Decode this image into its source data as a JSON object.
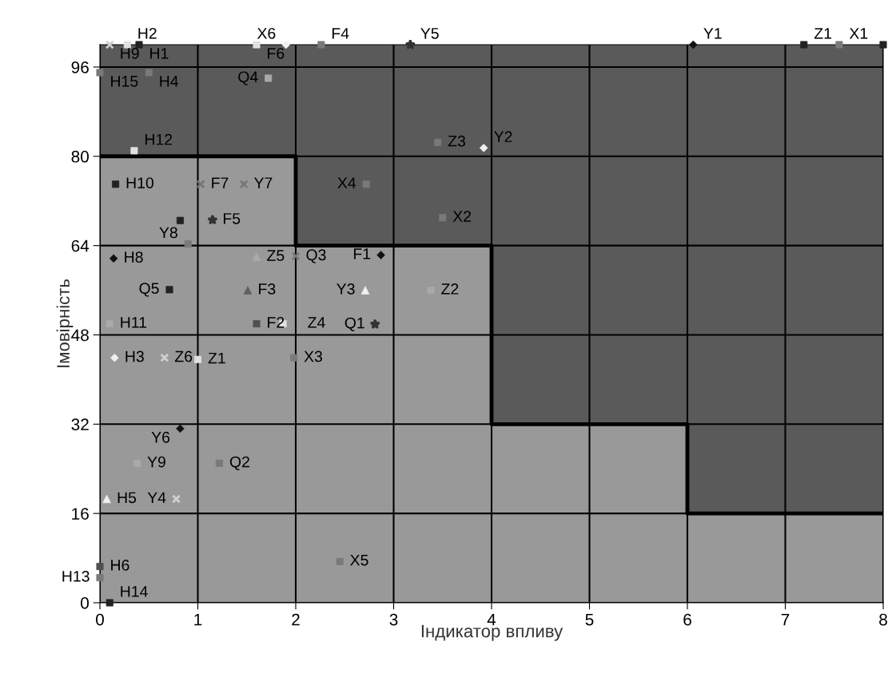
{
  "chart_data": {
    "type": "scatter",
    "xlabel": "Індикатор впливу",
    "ylabel": "Імовірність",
    "xlim": [
      0,
      8
    ],
    "ylim": [
      0,
      100
    ],
    "xticks": [
      0,
      1,
      2,
      3,
      4,
      5,
      6,
      7,
      8
    ],
    "yticks": [
      0,
      16,
      32,
      48,
      64,
      80,
      96
    ],
    "grid": true,
    "legend": false,
    "series": [
      {
        "type": "area",
        "color": "#999999",
        "x": [
          0,
          2,
          2,
          4,
          4,
          6,
          6,
          8
        ],
        "values": [
          80,
          80,
          64,
          64,
          32,
          32,
          16,
          16
        ]
      },
      {
        "marker": "diamond",
        "color": "#111111",
        "x": [
          0.14,
          2.87,
          0.82,
          6.06
        ],
        "values": [
          61.7,
          62.3,
          31.2,
          100
        ]
      },
      {
        "marker": "diamond",
        "color": "#f0f0f0",
        "x": [
          0.15,
          3.92,
          1.9
        ],
        "values": [
          43.9,
          81.5,
          100
        ]
      },
      {
        "marker": "triangle",
        "color": "#606060",
        "x": [
          1.51
        ],
        "values": [
          56
        ]
      },
      {
        "marker": "triangle",
        "color": "#f0f0f0",
        "x": [
          2.71,
          0.07
        ],
        "values": [
          56,
          18.6
        ]
      },
      {
        "marker": "triangle",
        "color": "#aaaaaa",
        "x": [
          1.6
        ],
        "values": [
          62
        ]
      },
      {
        "marker": "square",
        "color": "#505050",
        "x": [
          1.6,
          0.0
        ],
        "values": [
          50,
          6.5
        ]
      },
      {
        "marker": "square",
        "color": "#e0e0e0",
        "x": [
          1.87,
          0.35,
          0.28,
          1.0,
          1.6
        ],
        "values": [
          50,
          81,
          100,
          43.6,
          100
        ]
      },
      {
        "marker": "square",
        "color": "#222222",
        "x": [
          0.71,
          0.16,
          7.19,
          0.1,
          0.4,
          0.82,
          8.0
        ],
        "values": [
          56.1,
          75,
          100,
          0,
          100,
          68.5,
          100
        ]
      },
      {
        "marker": "square",
        "color": "#aaaaaa",
        "x": [
          0.1,
          0.38,
          1.72,
          3.38
        ],
        "values": [
          50,
          25,
          94,
          56
        ]
      },
      {
        "marker": "star",
        "color": "#333333",
        "x": [
          1.15,
          3.17,
          2.81
        ],
        "values": [
          68.6,
          100,
          49.9
        ]
      },
      {
        "marker": "cross",
        "color": "#777777",
        "x": [
          1.03,
          1.47,
          2.0
        ],
        "values": [
          75,
          75,
          62.1
        ]
      },
      {
        "marker": "cross",
        "color": "#d0d0d0",
        "x": [
          0.1,
          0.78,
          0.66
        ],
        "values": [
          100,
          18.6,
          43.9
        ]
      },
      {
        "marker": "square",
        "color": "#7a7a7a",
        "x": [
          2.26,
          3.45,
          2.72,
          3.5,
          0.9,
          1.22,
          1.98,
          2.45,
          7.55,
          0.0,
          0.5,
          0.0
        ],
        "values": [
          100,
          82.5,
          75,
          69,
          64.3,
          25,
          43.9,
          7.4,
          100,
          95,
          95,
          4.5
        ]
      }
    ],
    "annotations": [
      {
        "text": "H8",
        "x": 0.14,
        "y": 61.7
      },
      {
        "text": "F1",
        "x": 2.87,
        "y": 62.3
      },
      {
        "text": "Y6",
        "x": 0.82,
        "y": 31.2
      },
      {
        "text": "Y1",
        "x": 6.06,
        "y": 100
      },
      {
        "text": "H3",
        "x": 0.15,
        "y": 43.9
      },
      {
        "text": "Y2",
        "x": 3.92,
        "y": 81.5
      },
      {
        "text": "X6",
        "x": 1.9,
        "y": 100
      },
      {
        "text": "F3",
        "x": 1.51,
        "y": 56
      },
      {
        "text": "Y3",
        "x": 2.71,
        "y": 56
      },
      {
        "text": "H5",
        "x": 0.07,
        "y": 18.6
      },
      {
        "text": "Z5",
        "x": 1.6,
        "y": 62
      },
      {
        "text": "F2",
        "x": 1.6,
        "y": 50
      },
      {
        "text": "H6",
        "x": 0.0,
        "y": 6.5
      },
      {
        "text": "Z4",
        "x": 1.87,
        "y": 50
      },
      {
        "text": "H12",
        "x": 0.35,
        "y": 81
      },
      {
        "text": "H2",
        "x": 0.28,
        "y": 100
      },
      {
        "text": "Z1",
        "x": 1.0,
        "y": 43.6
      },
      {
        "text": "F6",
        "x": 1.6,
        "y": 100
      },
      {
        "text": "Q5",
        "x": 0.71,
        "y": 56.1
      },
      {
        "text": "H10",
        "x": 0.16,
        "y": 75
      },
      {
        "text": "Z1",
        "x": 7.19,
        "y": 100
      },
      {
        "text": "H14",
        "x": 0.1,
        "y": 0
      },
      {
        "text": "H1",
        "x": 0.4,
        "y": 100
      },
      {
        "text": "H11",
        "x": 0.1,
        "y": 50
      },
      {
        "text": "Y9",
        "x": 0.38,
        "y": 25
      },
      {
        "text": "Q4",
        "x": 1.72,
        "y": 94
      },
      {
        "text": "Z2",
        "x": 3.38,
        "y": 56
      },
      {
        "text": "F5",
        "x": 1.15,
        "y": 68.6
      },
      {
        "text": "Y5",
        "x": 3.17,
        "y": 100
      },
      {
        "text": "Q1",
        "x": 2.81,
        "y": 49.9
      },
      {
        "text": "F7",
        "x": 1.03,
        "y": 75
      },
      {
        "text": "Y7",
        "x": 1.47,
        "y": 75
      },
      {
        "text": "Q3",
        "x": 2.0,
        "y": 62.1
      },
      {
        "text": "H9",
        "x": 0.1,
        "y": 100
      },
      {
        "text": "Y4",
        "x": 0.78,
        "y": 18.6
      },
      {
        "text": "Z6",
        "x": 0.66,
        "y": 43.9
      },
      {
        "text": "F4",
        "x": 2.26,
        "y": 100
      },
      {
        "text": "Z3",
        "x": 3.45,
        "y": 82.5
      },
      {
        "text": "X4",
        "x": 2.72,
        "y": 75
      },
      {
        "text": "X2",
        "x": 3.5,
        "y": 69
      },
      {
        "text": "Y8",
        "x": 0.9,
        "y": 64.3
      },
      {
        "text": "Q2",
        "x": 1.22,
        "y": 25
      },
      {
        "text": "X3",
        "x": 1.98,
        "y": 43.9
      },
      {
        "text": "X5",
        "x": 2.45,
        "y": 7.4
      },
      {
        "text": "X1",
        "x": 7.55,
        "y": 100
      },
      {
        "text": "H15",
        "x": 0.0,
        "y": 95
      },
      {
        "text": "H4",
        "x": 0.5,
        "y": 95
      },
      {
        "text": "H13",
        "x": 0.0,
        "y": 4.5
      }
    ]
  }
}
